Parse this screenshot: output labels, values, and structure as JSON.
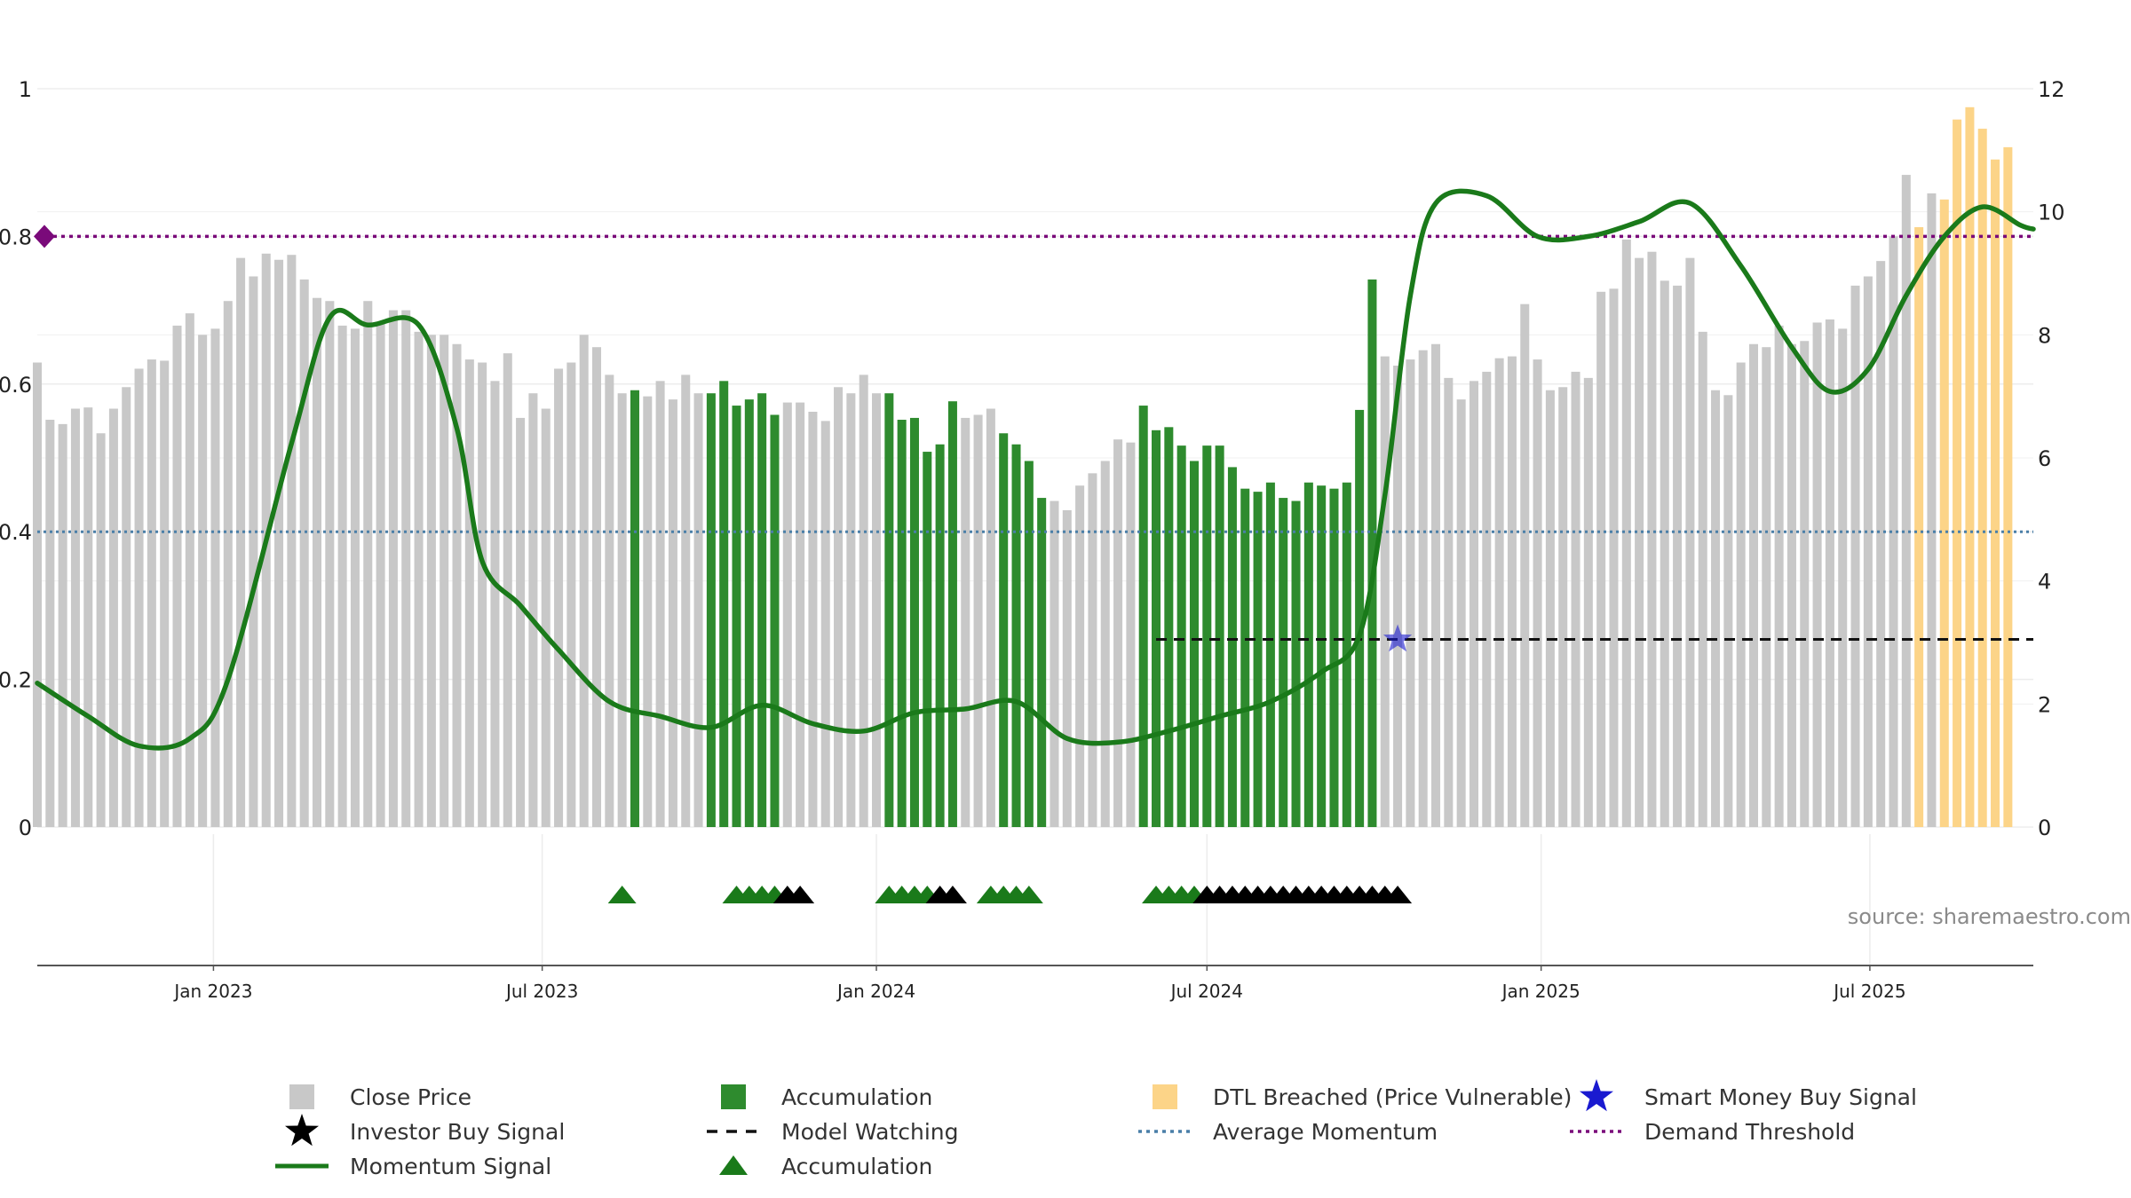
{
  "chart_data": {
    "type": "bar",
    "title": "",
    "xlabel": "",
    "ylabel": "",
    "source_text": "source: sharemaestro.com",
    "left_axis": {
      "ylim": [
        0,
        1
      ],
      "ticks": [
        0,
        0.2,
        0.4,
        0.6,
        0.8,
        1
      ],
      "tick_labels": [
        "0",
        "0.2",
        "0.4",
        "0.6",
        "0.8",
        "1"
      ]
    },
    "right_axis": {
      "ylim": [
        0,
        12
      ],
      "ticks": [
        0,
        2,
        4,
        6,
        8,
        10,
        12
      ],
      "tick_labels": [
        "0",
        "2",
        "4",
        "6",
        "8",
        "10",
        "12"
      ]
    },
    "x_axis": {
      "start_date": "2022-09-26",
      "end_date": "2025-09-29",
      "tick_dates": [
        "2023-01-01",
        "2023-07-01",
        "2024-01-01",
        "2024-07-01",
        "2025-01-01",
        "2025-07-01"
      ],
      "tick_labels": [
        "Jan 2023",
        "Jul 2023",
        "Jan 2024",
        "Jul 2024",
        "Jan 2025",
        "Jul 2025"
      ]
    },
    "grid": true,
    "legend_position": "bottom",
    "colors": {
      "close_price": "#c8c8c8",
      "accumulation": "#2e8b2e",
      "dtl_breached": "#fcd488",
      "momentum": "#1a7a1a",
      "average_momentum": "#4a7fa8",
      "demand_threshold": "#7a0a7a",
      "model_watching": "#111111",
      "investor_buy": "#000000",
      "accumulation_marker": "#1a7a1a",
      "smart_money_buy": "#1a1ad0"
    },
    "price_bars": {
      "first_week": "2022-09-26",
      "interval_days": 7,
      "values": [
        7.55,
        6.62,
        6.55,
        6.8,
        6.82,
        6.4,
        6.8,
        7.15,
        7.45,
        7.6,
        7.58,
        8.15,
        8.35,
        8.0,
        8.1,
        8.55,
        9.25,
        8.95,
        9.32,
        9.22,
        9.3,
        8.9,
        8.6,
        8.55,
        8.15,
        8.1,
        8.55,
        8.2,
        8.4,
        8.4,
        8.05,
        8.0,
        8.0,
        7.85,
        7.6,
        7.55,
        7.25,
        7.7,
        6.65,
        7.05,
        6.8,
        7.45,
        7.55,
        8.0,
        7.8,
        7.35,
        7.05,
        7.1,
        7.0,
        7.25,
        6.95,
        7.35,
        7.05,
        7.05,
        7.25,
        6.85,
        6.95,
        7.05,
        6.7,
        6.9,
        6.9,
        6.75,
        6.6,
        7.15,
        7.05,
        7.35,
        7.05,
        7.05,
        6.62,
        6.65,
        6.1,
        6.22,
        6.92,
        6.65,
        6.7,
        6.8,
        6.4,
        6.22,
        5.95,
        5.35,
        5.3,
        5.15,
        5.55,
        5.75,
        5.95,
        6.3,
        6.25,
        6.85,
        6.45,
        6.5,
        6.2,
        5.95,
        6.2,
        6.2,
        5.85,
        5.5,
        5.45,
        5.6,
        5.35,
        5.3,
        5.6,
        5.55,
        5.5,
        5.6,
        6.78,
        8.9,
        7.65,
        7.5,
        7.6,
        7.75,
        7.85,
        7.3,
        6.95,
        7.25,
        7.4,
        7.62,
        7.65,
        8.5,
        7.6,
        7.1,
        7.15,
        7.4,
        7.3,
        8.7,
        8.75,
        9.55,
        9.25,
        9.35,
        8.88,
        8.8,
        9.25,
        8.05,
        7.1,
        7.02,
        7.55,
        7.85,
        7.8,
        8.15,
        7.85,
        7.9,
        8.2,
        8.25,
        8.1,
        8.8,
        8.95,
        9.2,
        9.6,
        10.6,
        9.75,
        10.3,
        10.2,
        11.5,
        11.7,
        11.35,
        10.85,
        11.05
      ],
      "accumulation_weeks": [
        47,
        53,
        54,
        55,
        56,
        57,
        58,
        67,
        68,
        69,
        70,
        71,
        72,
        76,
        77,
        78,
        79,
        87,
        88,
        89,
        90,
        91,
        92,
        93,
        94,
        95,
        96,
        97,
        98,
        99,
        100,
        101,
        102,
        103,
        104,
        105
      ],
      "dtl_breached_weeks": [
        148,
        150,
        151,
        152,
        153,
        154,
        155,
        156
      ]
    },
    "momentum_signal": {
      "x": [
        "2022-09-26",
        "2022-10-24",
        "2022-11-21",
        "2022-12-19",
        "2023-01-09",
        "2023-02-13",
        "2023-03-06",
        "2023-03-27",
        "2023-04-24",
        "2023-05-15",
        "2023-05-29",
        "2023-06-19",
        "2023-07-10",
        "2023-08-07",
        "2023-09-04",
        "2023-10-02",
        "2023-10-30",
        "2023-11-27",
        "2023-12-25",
        "2024-01-22",
        "2024-02-19",
        "2024-03-18",
        "2024-04-15",
        "2024-05-13",
        "2024-06-10",
        "2024-07-08",
        "2024-08-05",
        "2024-09-02",
        "2024-09-23",
        "2024-10-07",
        "2024-10-21",
        "2024-11-04",
        "2024-12-02",
        "2024-12-30",
        "2025-01-27",
        "2025-02-24",
        "2025-03-24",
        "2025-04-21",
        "2025-05-19",
        "2025-06-09",
        "2025-06-30",
        "2025-07-21",
        "2025-08-11",
        "2025-09-01",
        "2025-09-22",
        "2025-09-29"
      ],
      "y": [
        0.195,
        0.15,
        0.11,
        0.12,
        0.2,
        0.52,
        0.69,
        0.68,
        0.68,
        0.54,
        0.36,
        0.3,
        0.24,
        0.17,
        0.15,
        0.135,
        0.165,
        0.14,
        0.13,
        0.155,
        0.16,
        0.17,
        0.12,
        0.115,
        0.13,
        0.15,
        0.17,
        0.21,
        0.26,
        0.45,
        0.72,
        0.845,
        0.855,
        0.8,
        0.8,
        0.82,
        0.845,
        0.76,
        0.65,
        0.59,
        0.62,
        0.72,
        0.8,
        0.84,
        0.815,
        0.81
      ]
    },
    "average_momentum": 0.4,
    "demand_threshold": 0.8,
    "model_watching": {
      "y_value": 3.05,
      "start_date": "2024-06-03",
      "end_date": "2025-09-29"
    },
    "smart_money_buy_signal": {
      "date": "2024-10-14",
      "y_value": 3.05
    },
    "signal_markers": {
      "accumulation": [
        "2023-08-14",
        "2023-10-16",
        "2023-10-23",
        "2023-10-30",
        "2023-11-06",
        "2024-01-08",
        "2024-01-15",
        "2024-01-22",
        "2024-01-29",
        "2024-03-04",
        "2024-03-11",
        "2024-03-18",
        "2024-03-25",
        "2024-06-03",
        "2024-06-10",
        "2024-06-17",
        "2024-06-24"
      ],
      "investor_buy": [
        "2023-11-13",
        "2023-11-20",
        "2024-02-05",
        "2024-02-12",
        "2024-07-01",
        "2024-07-08",
        "2024-07-15",
        "2024-07-22",
        "2024-07-29",
        "2024-08-05",
        "2024-08-12",
        "2024-08-19",
        "2024-08-26",
        "2024-09-02",
        "2024-09-09",
        "2024-09-16",
        "2024-09-23",
        "2024-09-30",
        "2024-10-07",
        "2024-10-14"
      ]
    },
    "legend": [
      {
        "key": "close_price",
        "label": "Close Price",
        "symbol": "square"
      },
      {
        "key": "accumulation",
        "label": "Accumulation",
        "symbol": "square"
      },
      {
        "key": "dtl_breached",
        "label": "DTL Breached (Price Vulnerable)",
        "symbol": "square"
      },
      {
        "key": "smart_money_buy",
        "label": "Smart Money Buy Signal",
        "symbol": "star"
      },
      {
        "key": "investor_buy",
        "label": "Investor Buy Signal",
        "symbol": "star"
      },
      {
        "key": "model_watching",
        "label": "Model Watching",
        "symbol": "dash"
      },
      {
        "key": "average_momentum",
        "label": "Average Momentum",
        "symbol": "dot"
      },
      {
        "key": "demand_threshold",
        "label": "Demand Threshold",
        "symbol": "dot"
      },
      {
        "key": "momentum",
        "label": "Momentum Signal",
        "symbol": "line"
      },
      {
        "key": "accumulation_marker",
        "label": "Accumulation",
        "symbol": "triangle"
      }
    ]
  }
}
